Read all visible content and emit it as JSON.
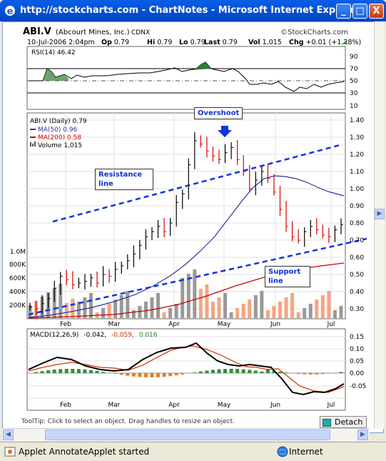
{
  "window": {
    "title": "http://stockcharts.com - ChartNotes - Microsoft Internet Explorer",
    "buttons": {
      "minimize": "_",
      "maximize": "□",
      "close": "X"
    }
  },
  "chart_header": {
    "symbol": "ABI.V",
    "company": "(Abcourt Mines, Inc.)",
    "exchange": "CDNX",
    "brand": "©StockCharts.com",
    "date": "10-Jul-2006 2:04pm",
    "op_label": "Op",
    "op": "0.79",
    "hi_label": "Hi",
    "hi": "0.79",
    "lo_label": "Lo",
    "lo": "0.79",
    "last_label": "Last",
    "last": "0.79",
    "vol_label": "Vol",
    "vol": "1,015",
    "chg_label": "Chg",
    "chg": "+0.01 (+1.28%)"
  },
  "rsi_panel": {
    "label": "RSI(14) 46.42",
    "ticks": [
      "90",
      "70",
      "50",
      "30",
      "10"
    ]
  },
  "price_panel": {
    "legend": {
      "title": "ABI.V (Daily) 0.79",
      "ma50": "MA(50) 0.96",
      "ma200": "MA(200) 0.58",
      "volume": "Volume 1,015"
    },
    "price_ticks": [
      "1.40",
      "1.30",
      "1.20",
      "1.10",
      "1.00",
      "0.90",
      "0.80",
      "0.70",
      "0.60",
      "0.50",
      "0.40",
      "0.30"
    ],
    "volume_ticks": [
      "1.0M",
      "800K",
      "600K",
      "400K",
      "200K"
    ],
    "month_labels": [
      "Feb",
      "Mar",
      "Apr",
      "May",
      "Jun",
      "Jul"
    ]
  },
  "macd_panel": {
    "label": "MACD(12,26,9)",
    "v1": "-0.042,",
    "v2": "-0.059,",
    "v3": "0.016",
    "ticks": [
      "0.15",
      "0.10",
      "0.05",
      "0.00",
      "-0.05"
    ],
    "month_labels": [
      "Feb",
      "Mar",
      "Apr",
      "May",
      "Jun",
      "Jul"
    ]
  },
  "annotations": {
    "overshoot": "Overshoot",
    "resistance": "Resistance line",
    "support": "Support line"
  },
  "bottom": {
    "tooltip": "ToolTip: Click to select an object. Drag handles to resize an object.",
    "detach": "Detach"
  },
  "statusbar": {
    "applet": "Applet AnnotateApplet started",
    "zone": "Internet"
  },
  "colors": {
    "titlebar": "#0554d8",
    "ma50": "#333399",
    "ma200": "#cc0000",
    "annotation": "#1133cc",
    "rsi_fill": "#2e7d32"
  },
  "chart_data": {
    "type": "line",
    "symbol": "ABI.V",
    "ylim": [
      0.3,
      1.4
    ],
    "x_labels": [
      "Feb",
      "Mar",
      "Apr",
      "May",
      "Jun",
      "Jul"
    ],
    "series": [
      {
        "name": "ABI.V (Daily)",
        "values": [
          0.31,
          0.3,
          0.33,
          0.36,
          0.42,
          0.49,
          0.47,
          0.44,
          0.45,
          0.46,
          0.48,
          0.45,
          0.5,
          0.49,
          0.53,
          0.55,
          0.58,
          0.62,
          0.67,
          0.72,
          0.75,
          0.78,
          0.75,
          0.8,
          0.92,
          0.97,
          1.14,
          1.28,
          1.26,
          1.22,
          1.19,
          1.17,
          1.21,
          1.24,
          1.17,
          1.1,
          1.0,
          1.05,
          1.1,
          1.06,
          0.98,
          0.88,
          0.78,
          0.72,
          0.7,
          0.75,
          0.78,
          0.76,
          0.73,
          0.72,
          0.76,
          0.79
        ]
      },
      {
        "name": "MA(50)",
        "values": [
          0.3,
          0.31,
          0.33,
          0.35,
          0.37,
          0.39,
          0.41,
          0.43,
          0.46,
          0.5,
          0.55,
          0.62,
          0.7,
          0.78,
          0.86,
          0.94,
          1.0,
          1.04,
          1.04,
          1.02,
          0.99,
          0.96
        ]
      },
      {
        "name": "MA(200)",
        "values": [
          0.3,
          0.3,
          0.31,
          0.32,
          0.33,
          0.35,
          0.37,
          0.4,
          0.43,
          0.46,
          0.49,
          0.52,
          0.54,
          0.56,
          0.58
        ]
      }
    ]
  }
}
